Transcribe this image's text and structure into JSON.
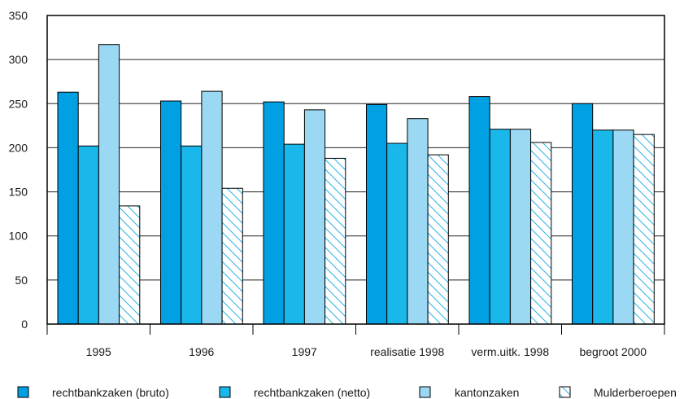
{
  "chart_data": {
    "type": "bar",
    "title": "",
    "xlabel": "",
    "ylabel": "",
    "ylim": [
      0,
      350
    ],
    "yticks": [
      0,
      50,
      100,
      150,
      200,
      250,
      300,
      350
    ],
    "grid": true,
    "legend_position": "bottom",
    "categories": [
      "1995",
      "1996",
      "1997",
      "realisatie 1998",
      "verm.uitk. 1998",
      "begroot 2000"
    ],
    "series": [
      {
        "name": "rechtbankzaken (bruto)",
        "color": "#00a0e3",
        "pattern": "solid",
        "values": [
          263,
          253,
          252,
          249,
          258,
          250
        ]
      },
      {
        "name": "rechtbankzaken (netto)",
        "color": "#1ab7ea",
        "pattern": "solid",
        "values": [
          202,
          202,
          204,
          205,
          221,
          220
        ]
      },
      {
        "name": "kantonzaken",
        "color": "#9bd8f3",
        "pattern": "solid",
        "values": [
          317,
          264,
          243,
          233,
          221,
          220
        ]
      },
      {
        "name": "Mulderberoepen",
        "color": "#ffffff",
        "pattern": "hatch",
        "hatch_color": "#2bb3e6",
        "values": [
          134,
          154,
          188,
          192,
          206,
          215
        ]
      }
    ]
  }
}
